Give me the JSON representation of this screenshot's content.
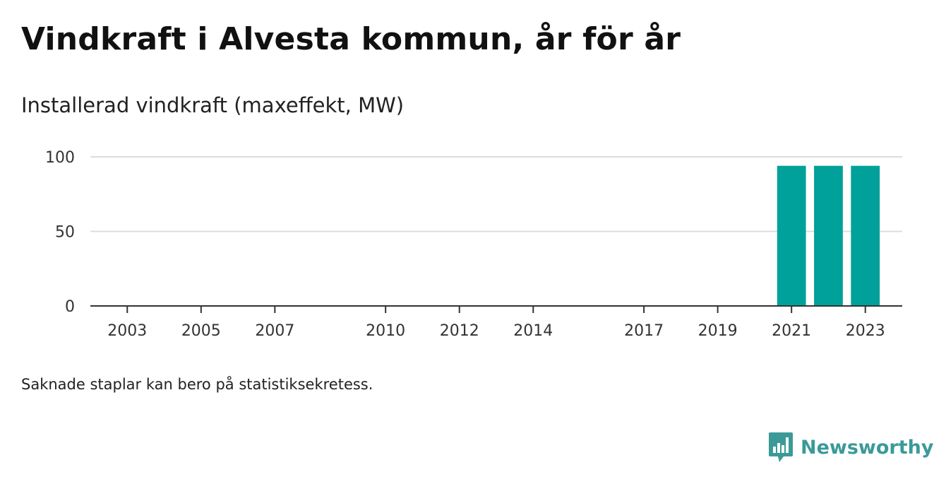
{
  "title": "Vindkraft i Alvesta kommun, år för år",
  "subtitle": "Installerad vindkraft (maxeffekt, MW)",
  "note": "Saknade staplar kan bero på statistiksekretess.",
  "brand": {
    "name": "Newsworthy",
    "icon": "newsworthy-logo-icon",
    "color": "#3a9a98"
  },
  "colors": {
    "bar": "#00a19a",
    "grid": "#dddddd",
    "axis": "#333333"
  },
  "chart_data": {
    "type": "bar",
    "title": "Vindkraft i Alvesta kommun, år för år",
    "subtitle": "Installerad vindkraft (maxeffekt, MW)",
    "xlabel": "",
    "ylabel": "",
    "x_range": [
      2002,
      2024
    ],
    "ylim": [
      0,
      100
    ],
    "yticks": [
      0,
      50,
      100
    ],
    "xticks": [
      2003,
      2005,
      2007,
      2010,
      2012,
      2014,
      2017,
      2019,
      2021,
      2023
    ],
    "x": [
      2021,
      2022,
      2023
    ],
    "values": [
      94,
      94,
      94
    ],
    "grid": true,
    "legend": "none"
  }
}
